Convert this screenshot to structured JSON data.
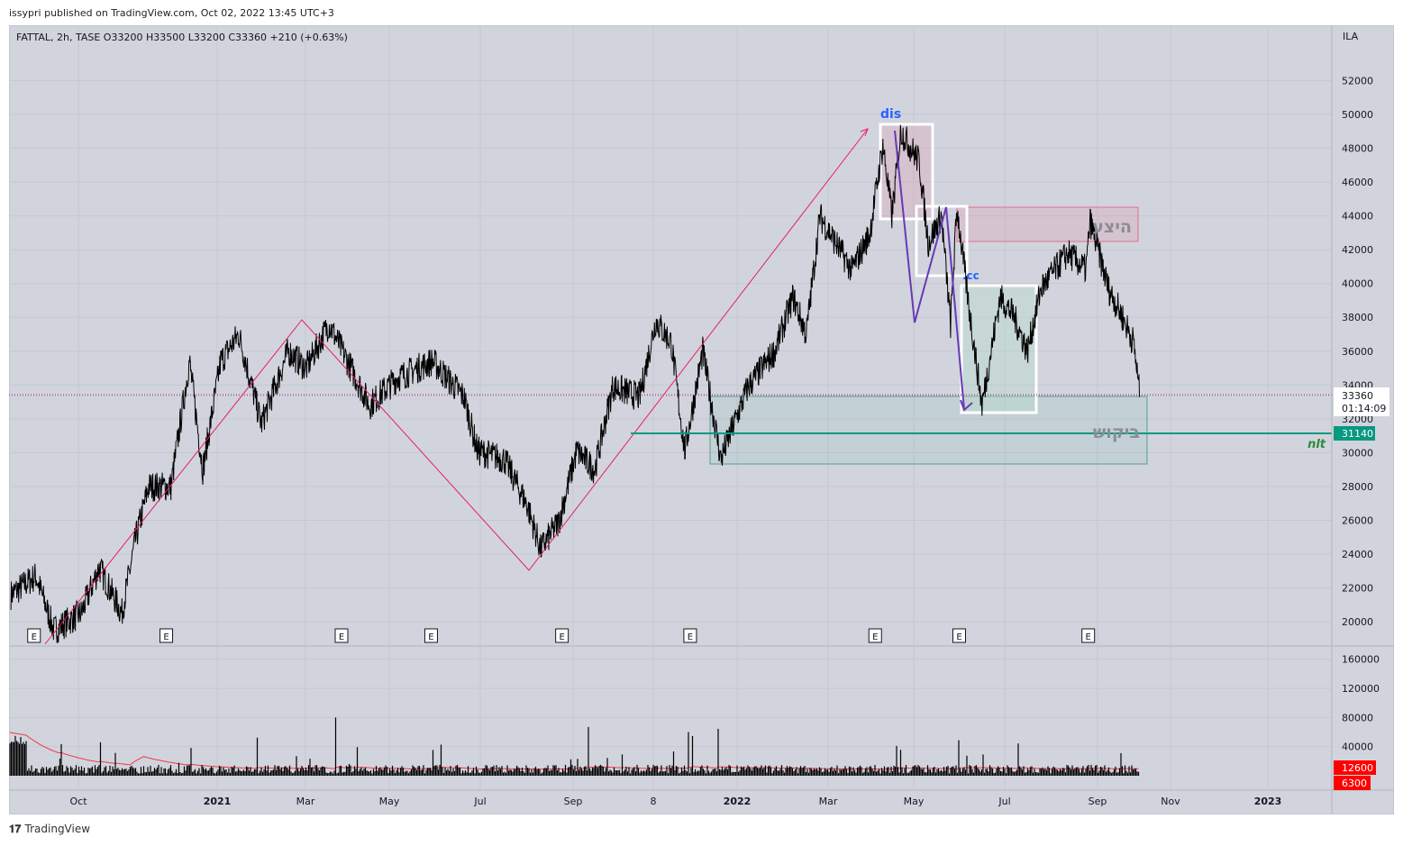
{
  "header": {
    "published": "issypri published on TradingView.com, Oct 02, 2022 13:45 UTC+3",
    "legend": "FATTAL, 2h, TASE  O33200  H33500  L33200  C33360  +210 (+0.63%)",
    "currency": "ILA"
  },
  "footer": {
    "logo": "TradingView"
  },
  "labels": {
    "dis": "dis",
    "cc": ".cc",
    "supply": "היצע",
    "demand": "ביקוש",
    "nlt": "nlt",
    "earnings": "E"
  },
  "price_tags": {
    "last": "33360",
    "countdown": "01:14:09",
    "level": "31140",
    "vol1": "12600",
    "vol2": "6300"
  },
  "colors": {
    "bg": "#d1d4dc",
    "level": "#089981",
    "zigzag": "#e91e63",
    "purple": "#673ab7",
    "volma": "#f23645"
  },
  "chart_data": {
    "type": "line",
    "title": "FATTAL, 2h, TASE",
    "ylabel": "ILA",
    "ylim": [
      18500,
      54000
    ],
    "x_ticks": [
      "Oct",
      "2021",
      "Mar",
      "May",
      "Jul",
      "Sep",
      "8",
      "2022",
      "Mar",
      "May",
      "Jul",
      "Sep",
      "Nov",
      "2023"
    ],
    "x_tick_month": [
      0,
      3,
      5,
      7,
      9,
      11,
      13,
      15,
      17,
      19,
      21,
      23,
      25,
      27
    ],
    "y_ticks": [
      20000,
      22000,
      24000,
      26000,
      28000,
      30000,
      32000,
      34000,
      36000,
      38000,
      40000,
      42000,
      44000,
      46000,
      48000,
      50000,
      52000
    ],
    "volume_ticks": [
      40000,
      80000,
      120000,
      160000
    ],
    "series": [
      {
        "name": "price",
        "points": [
          [
            -1.46,
            21600
          ],
          [
            -0.92,
            22700
          ],
          [
            -0.53,
            19500
          ],
          [
            0.06,
            20500
          ],
          [
            0.45,
            23200
          ],
          [
            0.94,
            20500
          ],
          [
            1.23,
            24800
          ],
          [
            1.52,
            28000
          ],
          [
            2.0,
            28000
          ],
          [
            2.4,
            35400
          ],
          [
            2.69,
            29000
          ],
          [
            3.08,
            35400
          ],
          [
            3.49,
            37000
          ],
          [
            4.0,
            31700
          ],
          [
            4.61,
            36000
          ],
          [
            5.02,
            35000
          ],
          [
            5.56,
            37600
          ],
          [
            6.53,
            32800
          ],
          [
            7.16,
            34400
          ],
          [
            7.95,
            35400
          ],
          [
            8.64,
            33300
          ],
          [
            8.94,
            30100
          ],
          [
            9.52,
            29600
          ],
          [
            10.01,
            26900
          ],
          [
            10.3,
            24300
          ],
          [
            10.69,
            25900
          ],
          [
            11.09,
            30100
          ],
          [
            11.54,
            29000
          ],
          [
            11.99,
            33900
          ],
          [
            12.66,
            33300
          ],
          [
            13.06,
            37800
          ],
          [
            13.43,
            36500
          ],
          [
            13.75,
            30100
          ],
          [
            14.18,
            36000
          ],
          [
            14.61,
            29600
          ],
          [
            15.24,
            33900
          ],
          [
            15.83,
            36000
          ],
          [
            16.23,
            39200
          ],
          [
            16.52,
            37000
          ],
          [
            16.82,
            44000
          ],
          [
            17.55,
            40800
          ],
          [
            17.97,
            42900
          ],
          [
            18.28,
            48200
          ],
          [
            18.49,
            44000
          ],
          [
            18.7,
            49000
          ],
          [
            19.12,
            47200
          ],
          [
            19.32,
            42400
          ],
          [
            19.61,
            44000
          ],
          [
            19.81,
            37600
          ],
          [
            19.95,
            44500
          ],
          [
            20.21,
            38700
          ],
          [
            20.5,
            32800
          ],
          [
            20.9,
            39200
          ],
          [
            21.19,
            38100
          ],
          [
            21.49,
            36000
          ],
          [
            21.78,
            39700
          ],
          [
            22.36,
            41800
          ],
          [
            22.75,
            40800
          ],
          [
            22.84,
            43700
          ],
          [
            23.3,
            39700
          ],
          [
            23.67,
            38100
          ],
          [
            23.99,
            36500
          ],
          [
            24.16,
            33360
          ]
        ]
      }
    ],
    "last_price": 33360,
    "level": 31140,
    "volume_last": [
      12600,
      6300
    ],
    "earnings_months": [
      -0.96,
      1.9,
      5.86,
      7.92,
      10.76,
      13.88,
      18.1,
      20.0,
      22.8
    ]
  }
}
